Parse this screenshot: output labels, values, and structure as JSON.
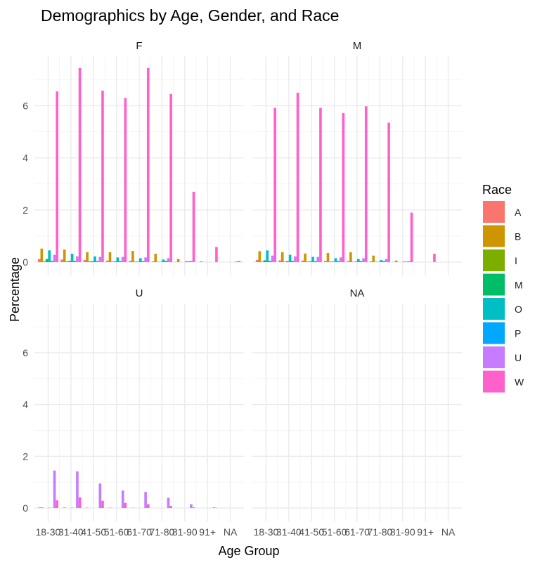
{
  "chart_data": {
    "type": "bar",
    "title": "Demographics by Age, Gender, and Race",
    "xlabel": "Age Group",
    "ylabel": "Percentage",
    "ylim": [
      0,
      7.9
    ],
    "yticks": [
      0,
      2,
      4,
      6
    ],
    "grid": true,
    "legend": {
      "title": "Race",
      "placement": "right"
    },
    "categories": [
      "18-30",
      "31-40",
      "41-50",
      "51-60",
      "61-70",
      "71-80",
      "81-90",
      "91+",
      "NA"
    ],
    "races": [
      "A",
      "B",
      "I",
      "M",
      "O",
      "P",
      "U",
      "W"
    ],
    "colors": {
      "A": "#F8766D",
      "B": "#CD9600",
      "I": "#7CAE00",
      "M": "#00BE67",
      "O": "#00BFC4",
      "P": "#00A9FF",
      "U": "#C77CFF",
      "W": "#FF61CC"
    },
    "facets": [
      {
        "label": "F",
        "series": [
          {
            "name": "A",
            "values": [
              0.12,
              0.1,
              0.08,
              0.06,
              0.05,
              0.03,
              0.01,
              0.0,
              0.0
            ]
          },
          {
            "name": "B",
            "values": [
              0.52,
              0.48,
              0.38,
              0.38,
              0.43,
              0.32,
              0.12,
              0.03,
              0.0
            ]
          },
          {
            "name": "I",
            "values": [
              0.03,
              0.03,
              0.03,
              0.02,
              0.02,
              0.01,
              0.0,
              0.0,
              0.0
            ]
          },
          {
            "name": "M",
            "values": [
              0.12,
              0.05,
              0.04,
              0.03,
              0.02,
              0.01,
              0.0,
              0.0,
              0.0
            ]
          },
          {
            "name": "O",
            "values": [
              0.45,
              0.32,
              0.22,
              0.18,
              0.15,
              0.1,
              0.03,
              0.0,
              0.0
            ]
          },
          {
            "name": "P",
            "values": [
              0.05,
              0.05,
              0.04,
              0.04,
              0.04,
              0.05,
              0.03,
              0.0,
              0.0
            ]
          },
          {
            "name": "U",
            "values": [
              0.28,
              0.22,
              0.2,
              0.2,
              0.18,
              0.15,
              0.05,
              0.0,
              0.03
            ]
          },
          {
            "name": "W",
            "values": [
              6.55,
              7.45,
              6.58,
              6.3,
              7.45,
              6.45,
              2.7,
              0.58,
              0.05
            ]
          }
        ]
      },
      {
        "label": "M",
        "series": [
          {
            "name": "A",
            "values": [
              0.08,
              0.07,
              0.06,
              0.05,
              0.04,
              0.03,
              0.01,
              0.0,
              0.0
            ]
          },
          {
            "name": "B",
            "values": [
              0.42,
              0.38,
              0.33,
              0.35,
              0.38,
              0.25,
              0.06,
              0.0,
              0.0
            ]
          },
          {
            "name": "I",
            "values": [
              0.02,
              0.02,
              0.02,
              0.02,
              0.01,
              0.01,
              0.0,
              0.0,
              0.0
            ]
          },
          {
            "name": "M",
            "values": [
              0.07,
              0.04,
              0.03,
              0.02,
              0.02,
              0.01,
              0.0,
              0.0,
              0.0
            ]
          },
          {
            "name": "O",
            "values": [
              0.45,
              0.28,
              0.2,
              0.15,
              0.12,
              0.08,
              0.02,
              0.0,
              0.0
            ]
          },
          {
            "name": "P",
            "values": [
              0.05,
              0.05,
              0.04,
              0.04,
              0.04,
              0.04,
              0.02,
              0.0,
              0.0
            ]
          },
          {
            "name": "U",
            "values": [
              0.25,
              0.22,
              0.2,
              0.18,
              0.15,
              0.12,
              0.04,
              0.0,
              0.0
            ]
          },
          {
            "name": "W",
            "values": [
              5.92,
              6.5,
              5.92,
              5.72,
              5.98,
              5.35,
              1.9,
              0.32,
              0.0
            ]
          }
        ]
      },
      {
        "label": "U",
        "series": [
          {
            "name": "A",
            "values": [
              0.02,
              0.0,
              0.0,
              0.0,
              0.0,
              0.0,
              0.0,
              0.0,
              0.0
            ]
          },
          {
            "name": "B",
            "values": [
              0.03,
              0.02,
              0.01,
              0.01,
              0.01,
              0.0,
              0.0,
              0.0,
              0.0
            ]
          },
          {
            "name": "I",
            "values": [
              0.0,
              0.0,
              0.0,
              0.0,
              0.0,
              0.0,
              0.0,
              0.0,
              0.0
            ]
          },
          {
            "name": "M",
            "values": [
              0.0,
              0.0,
              0.0,
              0.0,
              0.0,
              0.0,
              0.0,
              0.0,
              0.0
            ]
          },
          {
            "name": "O",
            "values": [
              0.01,
              0.01,
              0.0,
              0.0,
              0.0,
              0.0,
              0.0,
              0.0,
              0.0
            ]
          },
          {
            "name": "P",
            "values": [
              0.0,
              0.0,
              0.0,
              0.0,
              0.0,
              0.0,
              0.0,
              0.0,
              0.0
            ]
          },
          {
            "name": "U",
            "values": [
              1.45,
              1.42,
              0.95,
              0.68,
              0.62,
              0.4,
              0.15,
              0.03,
              0.0
            ]
          },
          {
            "name": "W",
            "values": [
              0.3,
              0.42,
              0.28,
              0.2,
              0.15,
              0.08,
              0.03,
              0.01,
              0.0
            ]
          }
        ]
      },
      {
        "label": "NA",
        "series": [
          {
            "name": "A",
            "values": [
              0,
              0,
              0,
              0,
              0,
              0,
              0,
              0,
              0
            ]
          },
          {
            "name": "B",
            "values": [
              0,
              0,
              0,
              0,
              0,
              0,
              0,
              0,
              0
            ]
          },
          {
            "name": "I",
            "values": [
              0,
              0,
              0,
              0,
              0,
              0,
              0,
              0,
              0
            ]
          },
          {
            "name": "M",
            "values": [
              0,
              0,
              0,
              0,
              0,
              0,
              0,
              0,
              0
            ]
          },
          {
            "name": "O",
            "values": [
              0,
              0,
              0,
              0,
              0,
              0,
              0,
              0,
              0
            ]
          },
          {
            "name": "P",
            "values": [
              0,
              0,
              0,
              0,
              0,
              0,
              0,
              0,
              0
            ]
          },
          {
            "name": "U",
            "values": [
              0,
              0,
              0,
              0,
              0,
              0,
              0,
              0,
              0
            ]
          },
          {
            "name": "W",
            "values": [
              0,
              0,
              0,
              0,
              0,
              0,
              0,
              0,
              0
            ]
          }
        ]
      }
    ]
  }
}
